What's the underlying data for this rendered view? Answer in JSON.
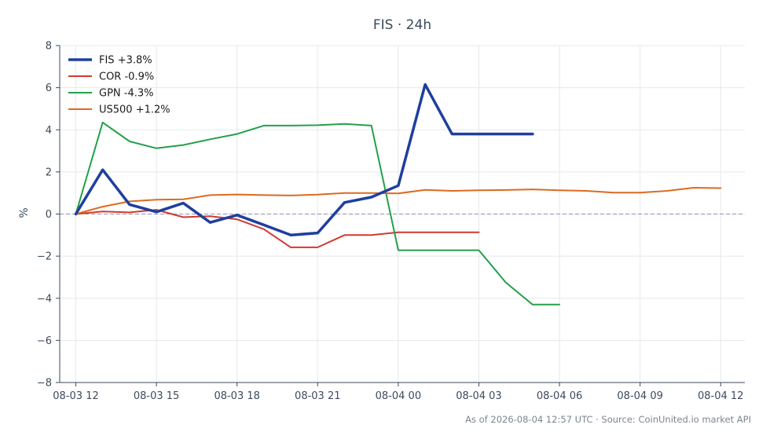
{
  "chart_data": {
    "type": "line",
    "title": "FIS · 24h",
    "ylabel": "%",
    "xlabel": "",
    "xlim": [
      -0.6,
      24.9
    ],
    "ylim": [
      -8,
      8
    ],
    "yticks": [
      -8,
      -6,
      -4,
      -2,
      0,
      2,
      4,
      6,
      8
    ],
    "xticks": [
      {
        "x": 0,
        "label": "08-03 12"
      },
      {
        "x": 3,
        "label": "08-03 15"
      },
      {
        "x": 6,
        "label": "08-03 18"
      },
      {
        "x": 9,
        "label": "08-03 21"
      },
      {
        "x": 12,
        "label": "08-04 00"
      },
      {
        "x": 15,
        "label": "08-04 03"
      },
      {
        "x": 18,
        "label": "08-04 06"
      },
      {
        "x": 21,
        "label": "08-04 09"
      },
      {
        "x": 24,
        "label": "08-04 12"
      }
    ],
    "grid": true,
    "legend": "top-left",
    "baseline": 0,
    "series": [
      {
        "name": "FIS +3.8%",
        "color": "#1f3f9e",
        "width": 3.5,
        "points": [
          [
            0,
            0
          ],
          [
            1,
            2.1
          ],
          [
            2,
            0.45
          ],
          [
            3,
            0.1
          ],
          [
            4,
            0.52
          ],
          [
            5,
            -0.4
          ],
          [
            6,
            -0.05
          ],
          [
            7,
            -0.52
          ],
          [
            8,
            -1.0
          ],
          [
            9,
            -0.9
          ],
          [
            10,
            0.55
          ],
          [
            11,
            0.8
          ],
          [
            12,
            1.35
          ],
          [
            13,
            6.15
          ],
          [
            14,
            3.8
          ],
          [
            15,
            3.8
          ],
          [
            16,
            3.8
          ],
          [
            17,
            3.8
          ]
        ]
      },
      {
        "name": "COR -0.9%",
        "color": "#d03a2f",
        "width": 2,
        "points": [
          [
            0,
            0
          ],
          [
            1,
            0.12
          ],
          [
            2,
            0.08
          ],
          [
            3,
            0.2
          ],
          [
            4,
            -0.15
          ],
          [
            5,
            -0.1
          ],
          [
            6,
            -0.25
          ],
          [
            7,
            -0.72
          ],
          [
            8,
            -1.58
          ],
          [
            9,
            -1.58
          ],
          [
            10,
            -1.0
          ],
          [
            11,
            -1.0
          ],
          [
            12,
            -0.87
          ],
          [
            13,
            -0.87
          ],
          [
            14,
            -0.87
          ],
          [
            15,
            -0.87
          ]
        ]
      },
      {
        "name": "GPN -4.3%",
        "color": "#23a04a",
        "width": 2,
        "points": [
          [
            0,
            0
          ],
          [
            1,
            4.35
          ],
          [
            2,
            3.45
          ],
          [
            3,
            3.12
          ],
          [
            4,
            3.28
          ],
          [
            5,
            3.55
          ],
          [
            6,
            3.8
          ],
          [
            7,
            4.2
          ],
          [
            8,
            4.2
          ],
          [
            9,
            4.22
          ],
          [
            10,
            4.28
          ],
          [
            11,
            4.2
          ],
          [
            12,
            -1.72
          ],
          [
            13,
            -1.72
          ],
          [
            14,
            -1.72
          ],
          [
            15,
            -1.72
          ],
          [
            16,
            -3.25
          ],
          [
            17,
            -4.3
          ],
          [
            18,
            -4.3
          ]
        ]
      },
      {
        "name": "US500 +1.2%",
        "color": "#dd6a22",
        "width": 2,
        "points": [
          [
            0,
            0
          ],
          [
            1,
            0.35
          ],
          [
            2,
            0.6
          ],
          [
            3,
            0.68
          ],
          [
            4,
            0.7
          ],
          [
            5,
            0.9
          ],
          [
            6,
            0.93
          ],
          [
            7,
            0.9
          ],
          [
            8,
            0.88
          ],
          [
            9,
            0.92
          ],
          [
            10,
            1.0
          ],
          [
            11,
            1.0
          ],
          [
            12,
            0.98
          ],
          [
            13,
            1.15
          ],
          [
            14,
            1.1
          ],
          [
            15,
            1.13
          ],
          [
            16,
            1.14
          ],
          [
            17,
            1.17
          ],
          [
            18,
            1.13
          ],
          [
            19,
            1.1
          ],
          [
            20,
            1.02
          ],
          [
            21,
            1.02
          ],
          [
            22,
            1.1
          ],
          [
            23,
            1.25
          ],
          [
            24,
            1.23
          ]
        ]
      }
    ]
  },
  "footer": "As of 2026-08-04 12:57 UTC · Source: CoinUnited.io market API"
}
